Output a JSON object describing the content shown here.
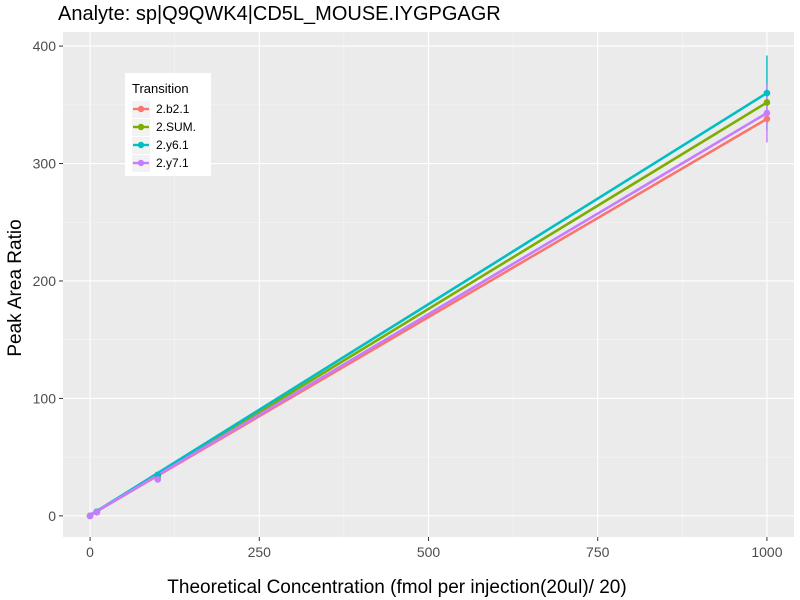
{
  "chart_data": {
    "type": "line",
    "title": "Analyte: sp|Q9QWK4|CD5L_MOUSE.IYGPGAGR",
    "xlabel": "Theoretical Concentration (fmol per injection(20ul)/ 20)",
    "ylabel": "Peak Area Ratio",
    "xlim": [
      -40,
      1040
    ],
    "ylim": [
      -18,
      412
    ],
    "x_ticks": [
      0,
      250,
      500,
      750,
      1000
    ],
    "x_tick_labels": [
      "0",
      "250",
      "500",
      "750",
      "1000"
    ],
    "y_ticks": [
      0,
      100,
      200,
      300,
      400
    ],
    "y_tick_labels": [
      "0",
      "100",
      "200",
      "300",
      "400"
    ],
    "grid": true,
    "legend": {
      "title": "Transition",
      "placement": "top-left"
    },
    "series": [
      {
        "name": "2.b2.1",
        "color": "#F8766D",
        "x": [
          0,
          10,
          100,
          1000
        ],
        "y": [
          0,
          3,
          32,
          338
        ],
        "fit": [
          [
            0,
            0.5
          ],
          [
            1000,
            338
          ]
        ]
      },
      {
        "name": "2.SUM.",
        "color": "#7CAE00",
        "x": [
          0,
          10,
          100,
          1000
        ],
        "y": [
          0,
          3.5,
          34,
          352
        ],
        "fit": [
          [
            0,
            0.5
          ],
          [
            1000,
            352
          ]
        ]
      },
      {
        "name": "2.y6.1",
        "color": "#00BFC4",
        "x": [
          0,
          10,
          100,
          1000
        ],
        "y": [
          0,
          3.5,
          35,
          360
        ],
        "fit": [
          [
            0,
            0.5
          ],
          [
            1000,
            360
          ]
        ],
        "error": [
          [
            1000,
            328,
            392
          ]
        ]
      },
      {
        "name": "2.y7.1",
        "color": "#C77CFF",
        "x": [
          0,
          10,
          100,
          1000
        ],
        "y": [
          0,
          3,
          31,
          343
        ],
        "fit": [
          [
            0,
            0.5
          ],
          [
            1000,
            343
          ]
        ],
        "error": [
          [
            1000,
            318,
            368
          ]
        ]
      }
    ]
  }
}
